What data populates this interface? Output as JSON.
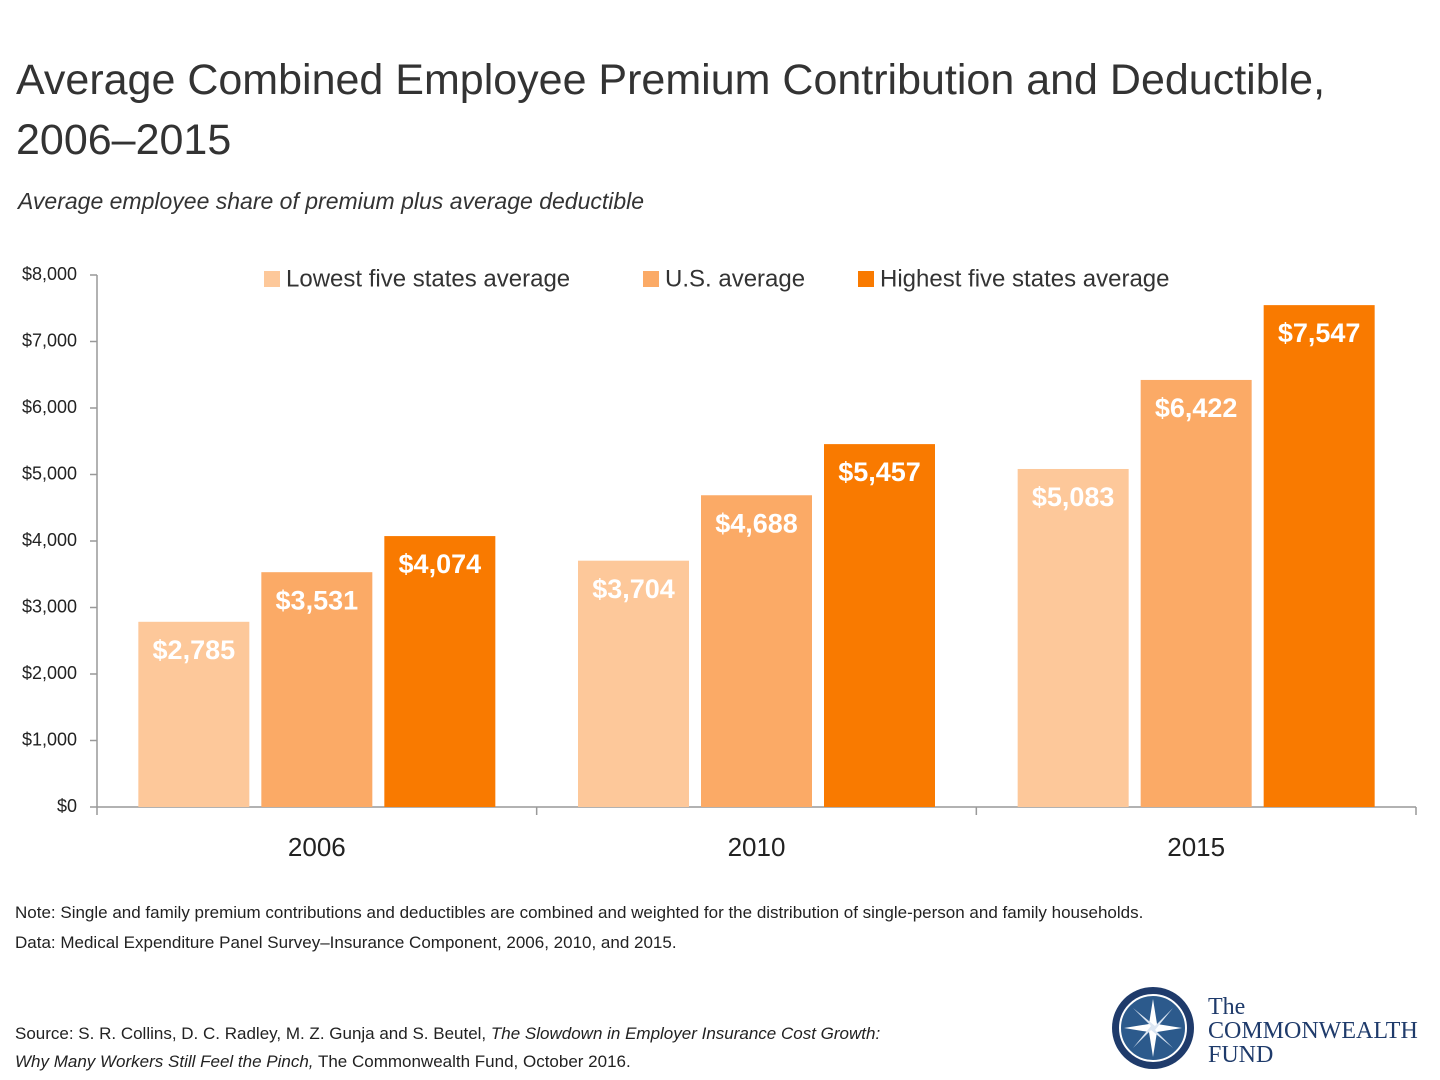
{
  "chart_data": {
    "type": "bar",
    "title": "Average Combined Employee Premium Contribution and Deductible, 2006–2015",
    "subtitle": "Average employee share of premium plus average deductible",
    "categories": [
      "2006",
      "2010",
      "2015"
    ],
    "series": [
      {
        "name": "Lowest five states average",
        "color": "#fdc89a",
        "values": [
          2785,
          3704,
          5083
        ],
        "value_labels": [
          "$2,785",
          "$3,704",
          "$5,083"
        ]
      },
      {
        "name": "U.S. average",
        "color": "#fbaa66",
        "values": [
          3531,
          4688,
          6422
        ],
        "value_labels": [
          "$3,531",
          "$4,688",
          "$6,422"
        ]
      },
      {
        "name": "Highest five states average",
        "color": "#f97a00",
        "values": [
          4074,
          5457,
          7547
        ],
        "value_labels": [
          "$4,074",
          "$5,457",
          "$7,547"
        ]
      }
    ],
    "ylim": [
      0,
      8000
    ],
    "yticks": [
      {
        "value": 0,
        "label": "$0"
      },
      {
        "value": 1000,
        "label": "$1,000"
      },
      {
        "value": 2000,
        "label": "$2,000"
      },
      {
        "value": 3000,
        "label": "$3,000"
      },
      {
        "value": 4000,
        "label": "$4,000"
      },
      {
        "value": 5000,
        "label": "$5,000"
      },
      {
        "value": 6000,
        "label": "$6,000"
      },
      {
        "value": 7000,
        "label": "$7,000"
      },
      {
        "value": 8000,
        "label": "$8,000"
      }
    ],
    "grid": false,
    "legend": "top",
    "notes": [
      "Note: Single and family premium contributions and deductibles are combined and weighted for the distribution of single-person and family households.",
      "Data: Medical Expenditure Panel Survey–Insurance Component, 2006, 2010, and 2015."
    ],
    "source": {
      "prefix": "Source: S. R. Collins, D. C. Radley, M. Z. Gunja and S. Beutel,",
      "title": "The Slowdown in Employer Insurance Cost Growth: Why Many Workers Still Feel the Pinch,",
      "suffix": "The Commonwealth Fund, October 2016."
    },
    "logo": [
      "The",
      "COMMONWEALTH",
      "FUND"
    ]
  }
}
